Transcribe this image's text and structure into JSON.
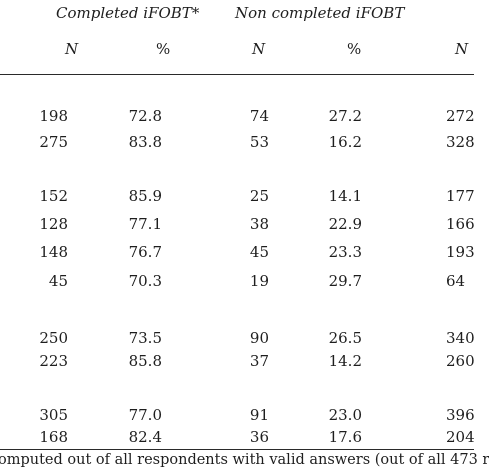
{
  "header": {
    "group_completed": "Completed  iFOBT*",
    "group_non_completed": "Non completed iFOBT",
    "col_n1": "N",
    "col_pct1": "%",
    "col_n2": "N",
    "col_pct2": "%",
    "col_n3": "N"
  },
  "rows": [
    {
      "n1": "198",
      "p1": "72.8",
      "n2": "74",
      "p2": "27.2",
      "t": "272"
    },
    {
      "n1": "275",
      "p1": "83.8",
      "n2": "53",
      "p2": "16.2",
      "t": "328"
    },
    {
      "n1": "152",
      "p1": "85.9",
      "n2": "25",
      "p2": "14.1",
      "t": "177"
    },
    {
      "n1": "128",
      "p1": "77.1",
      "n2": "38",
      "p2": "22.9",
      "t": "166"
    },
    {
      "n1": "148",
      "p1": "76.7",
      "n2": "45",
      "p2": "23.3",
      "t": "193"
    },
    {
      "n1": "45",
      "p1": "70.3",
      "n2": "19",
      "p2": "29.7",
      "t": "64"
    },
    {
      "n1": "250",
      "p1": "73.5",
      "n2": "90",
      "p2": "26.5",
      "t": "340"
    },
    {
      "n1": "223",
      "p1": "85.8",
      "n2": "37",
      "p2": "14.2",
      "t": "260"
    },
    {
      "n1": "305",
      "p1": "77.0",
      "n2": "91",
      "p2": "23.0",
      "t": "396"
    },
    {
      "n1": "168",
      "p1": "82.4",
      "n2": "36",
      "p2": "17.6",
      "t": "204"
    }
  ],
  "footnote": "omputed out of all respondents with valid answers (out of all 473 r"
}
